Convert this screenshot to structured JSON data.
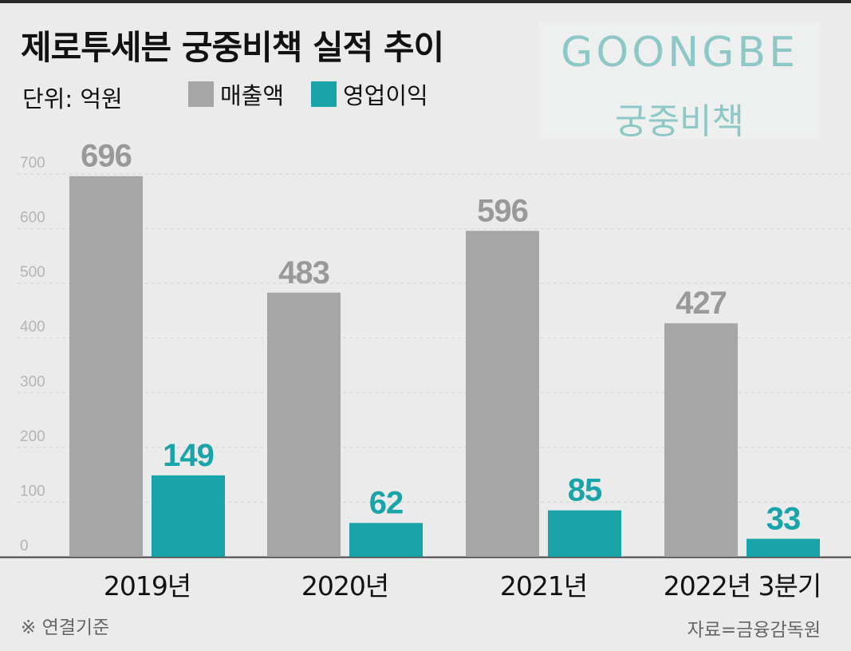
{
  "title": "제로투세븐 궁중비책 실적 추이",
  "unit_label": "단위: 억원",
  "logo": {
    "en": "GOONGBE",
    "ko": "궁중비책"
  },
  "footnote": "※ 연결기준",
  "source": "자료=금융감독원",
  "colors": {
    "sales": "#a6a6a6",
    "profit": "#18a4a8",
    "background": "#ebebeb"
  },
  "chart_data": {
    "type": "bar",
    "categories": [
      "2019년",
      "2020년",
      "2021년",
      "2022년 3분기"
    ],
    "series": [
      {
        "name": "매출액",
        "values": [
          696,
          483,
          596,
          427
        ]
      },
      {
        "name": "영업이익",
        "values": [
          149,
          62,
          85,
          33
        ]
      }
    ],
    "yticks": [
      0,
      100,
      200,
      300,
      400,
      500,
      600,
      700
    ],
    "ylim": [
      0,
      700
    ],
    "grid": true,
    "legend_position": "top-left"
  }
}
